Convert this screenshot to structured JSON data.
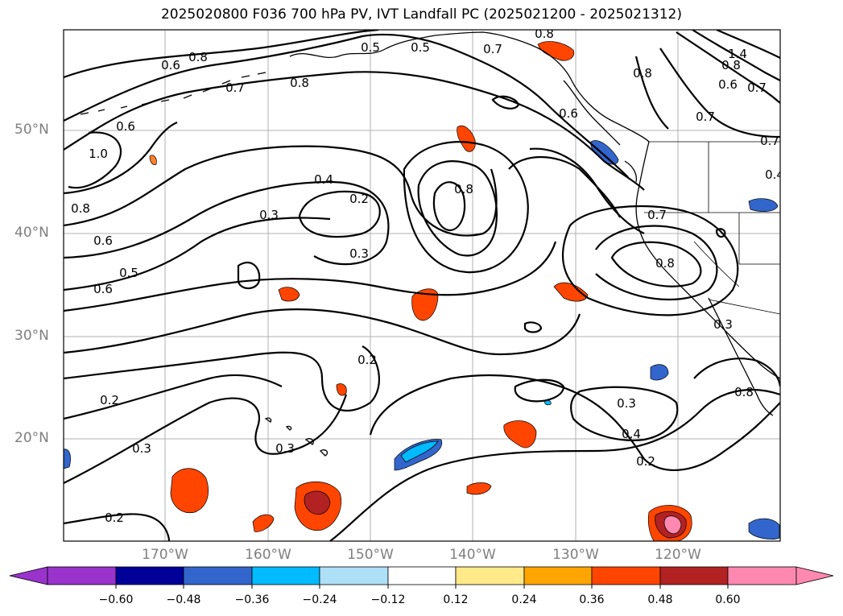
{
  "title": "2025020800 F036 700 hPa PV, IVT Landfall PC (2025021200 - 2025021312)",
  "map": {
    "lat_labels": [
      "50°N",
      "40°N",
      "30°N",
      "20°N"
    ],
    "lon_labels": [
      "170°W",
      "160°W",
      "150°W",
      "140°W",
      "130°W",
      "120°W"
    ],
    "contour_labels": [
      "0.8",
      "0.6",
      "0.7",
      "0.8",
      "0.5",
      "0.5",
      "0.8",
      "0.7",
      "0.6",
      "0.8",
      "1.4",
      "0.8",
      "0.6",
      "0.7",
      "0.7",
      "0.6",
      "0.7",
      "1.0",
      "0.4",
      "0.2",
      "0.3",
      "0.8",
      "0.8",
      "0.7",
      "0.6",
      "0.6",
      "0.5",
      "0.3",
      "0.8",
      "0.2",
      "0.3",
      "0.2",
      "0.3",
      "0.4",
      "0.3",
      "0.3",
      "0.2",
      "0.2",
      "0.8",
      "0.4"
    ],
    "coastline_color": "#000000",
    "grid_color": "#b0b0b0"
  },
  "colorbar": {
    "tick_labels": [
      "−0.60",
      "−0.48",
      "−0.36",
      "−0.24",
      "−0.12",
      "0.12",
      "0.24",
      "0.36",
      "0.48",
      "0.60"
    ],
    "colors": [
      "#9933cc",
      "#000099",
      "#3366cc",
      "#00bbff",
      "#aee0f8",
      "#ffffff",
      "#ffe989",
      "#ffa500",
      "#ff4500",
      "#b22222",
      "#ff88b0",
      "#ff88b0"
    ]
  }
}
